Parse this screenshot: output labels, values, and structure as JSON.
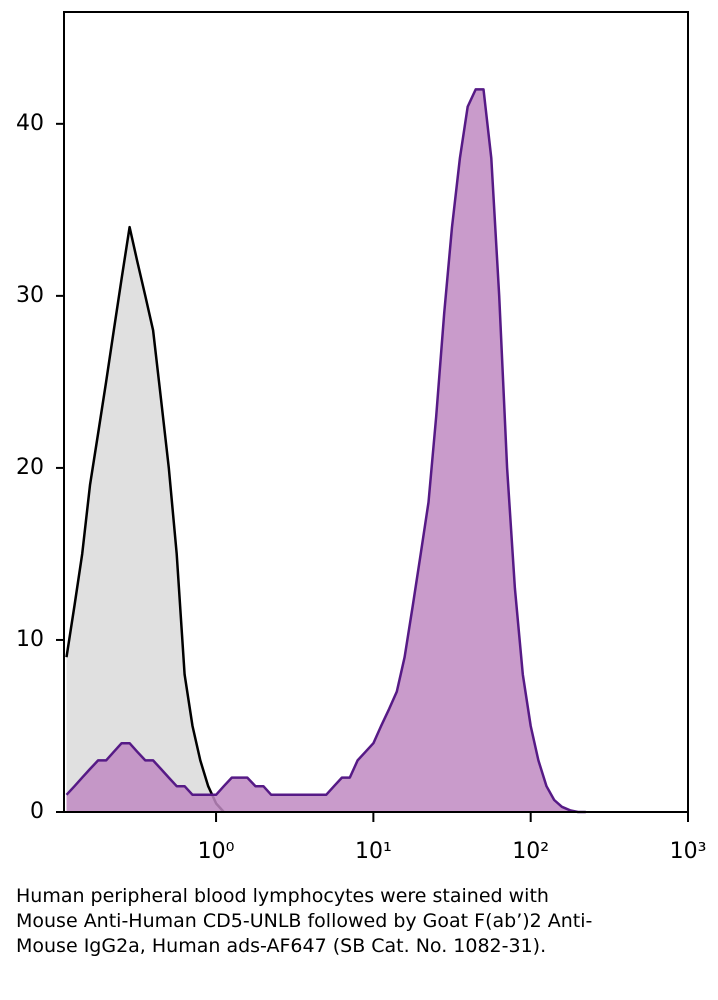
{
  "chart_data": {
    "type": "histogram-overlay",
    "caption": "Human peripheral blood lymphocytes were stained with Mouse Anti-Human CD5-UNLB followed by Goat F(ab’)2 Anti-Mouse IgG2a, Human ads-AF647 (SB Cat. No. 1082-31).",
    "log_x": true,
    "xlim": [
      0.108,
      1000
    ],
    "xticks": [
      {
        "value": 1,
        "label": "10⁰"
      },
      {
        "value": 10,
        "label": "10¹"
      },
      {
        "value": 100,
        "label": "10²"
      },
      {
        "value": 1000,
        "label": "10³"
      }
    ],
    "ylim": [
      0,
      46.5
    ],
    "yticks": [
      0,
      10,
      20,
      30,
      40
    ],
    "x": [
      0.112,
      0.126,
      0.141,
      0.158,
      0.178,
      0.2,
      0.224,
      0.251,
      0.282,
      0.316,
      0.355,
      0.398,
      0.447,
      0.501,
      0.562,
      0.631,
      0.708,
      0.794,
      0.891,
      1,
      1.12,
      1.26,
      1.41,
      1.58,
      1.78,
      2,
      2.24,
      2.51,
      2.82,
      3.16,
      3.55,
      3.98,
      4.47,
      5.01,
      5.62,
      6.31,
      7.08,
      7.94,
      8.91,
      10,
      11.2,
      12.6,
      14.1,
      15.8,
      17.8,
      20,
      22.4,
      25.1,
      28.2,
      31.6,
      35.5,
      39.8,
      44.7,
      50.1,
      56.2,
      63.1,
      70.8,
      79.4,
      89.1,
      100,
      112,
      126,
      141,
      158,
      178,
      200,
      224
    ],
    "series": [
      {
        "color": "#000000",
        "fill": "#e0e0e0",
        "values": [
          9,
          12,
          15,
          19,
          22,
          25,
          28,
          31,
          34,
          32,
          30,
          28,
          24,
          20,
          15,
          8,
          5,
          3,
          1.5,
          0.5,
          0,
          null,
          null,
          null,
          null,
          null,
          null,
          null,
          null,
          null,
          null,
          null,
          null,
          null,
          null,
          null,
          null,
          null,
          null,
          null,
          null,
          null,
          null,
          null,
          null,
          null,
          null,
          null,
          null,
          null,
          null,
          null,
          null,
          null,
          null,
          null,
          null,
          null,
          null,
          null,
          null,
          null,
          null,
          null,
          null,
          null,
          null
        ]
      },
      {
        "color": "#561a86",
        "fill": "#c08ac2",
        "values": [
          1,
          1.5,
          2,
          2.5,
          3,
          3,
          3.5,
          4,
          4,
          3.5,
          3,
          3,
          2.5,
          2,
          1.5,
          1.5,
          1,
          1,
          1,
          1,
          1.5,
          2,
          2,
          2,
          1.5,
          1.5,
          1,
          1,
          1,
          1,
          1,
          1,
          1,
          1,
          1.5,
          2,
          2,
          3,
          3.5,
          4,
          5,
          6,
          7,
          9,
          12,
          15,
          18,
          23,
          29,
          34,
          38,
          41,
          42,
          42,
          38,
          30,
          20,
          13,
          8,
          5,
          3,
          1.5,
          0.7,
          0.3,
          0.1,
          0,
          0
        ]
      }
    ]
  }
}
